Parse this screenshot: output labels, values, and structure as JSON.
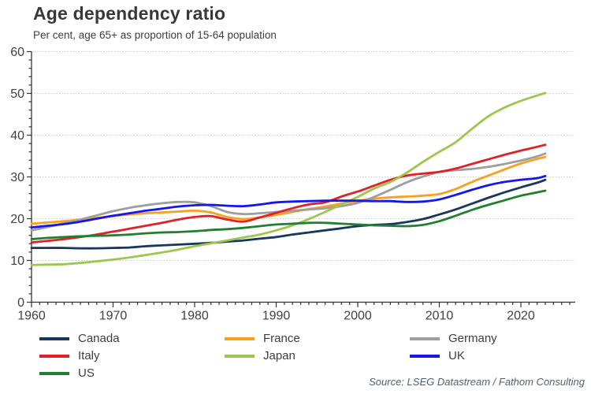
{
  "chart_data": {
    "type": "line",
    "title": "Age dependency ratio",
    "subtitle": "Per cent, age 65+ as proportion of 15-64 population",
    "source": "Source: LSEG Datastream / Fathom Consulting",
    "x": [
      1960,
      1962,
      1964,
      1966,
      1968,
      1970,
      1972,
      1974,
      1976,
      1978,
      1980,
      1982,
      1984,
      1986,
      1988,
      1990,
      1992,
      1994,
      1996,
      1998,
      2000,
      2002,
      2004,
      2006,
      2008,
      2010,
      2012,
      2014,
      2016,
      2018,
      2020,
      2022,
      2023
    ],
    "xlim": [
      1960,
      2026.6
    ],
    "ylim": [
      0,
      60
    ],
    "x_ticks": [
      1960,
      1970,
      1980,
      1990,
      2000,
      2010,
      2020
    ],
    "y_ticks": [
      0,
      10,
      20,
      30,
      40,
      50,
      60
    ],
    "y_minor_step": 2,
    "x_minor_step": 1,
    "grid": "horizontal-dotted",
    "grid_color": "#c9c9c9",
    "axis_color": "#333333",
    "tick_label_color": "#404040",
    "legend_position": "bottom",
    "series": [
      {
        "name": "Canada",
        "color": "#17375e",
        "values": [
          13.0,
          13.0,
          13.0,
          12.9,
          12.9,
          13.0,
          13.1,
          13.4,
          13.6,
          13.8,
          14.0,
          14.2,
          14.5,
          14.8,
          15.2,
          15.6,
          16.2,
          16.7,
          17.2,
          17.7,
          18.2,
          18.5,
          18.7,
          19.2,
          19.9,
          21.0,
          22.2,
          23.6,
          25.0,
          26.3,
          27.5,
          28.6,
          29.3
        ]
      },
      {
        "name": "France",
        "color": "#f9a11c",
        "values": [
          18.8,
          19.1,
          19.4,
          19.8,
          20.2,
          20.6,
          21.0,
          21.3,
          21.5,
          21.7,
          21.9,
          21.5,
          20.4,
          19.9,
          20.3,
          20.9,
          21.6,
          22.3,
          22.9,
          23.6,
          24.3,
          24.8,
          25.1,
          25.3,
          25.5,
          25.9,
          27.1,
          28.8,
          30.3,
          31.8,
          33.2,
          34.3,
          34.8
        ]
      },
      {
        "name": "Germany",
        "color": "#9e9e9e",
        "values": [
          17.2,
          18.0,
          18.9,
          19.8,
          20.8,
          21.8,
          22.6,
          23.2,
          23.7,
          24.0,
          23.9,
          23.0,
          21.6,
          21.1,
          21.3,
          21.6,
          21.9,
          22.2,
          22.5,
          23.0,
          23.8,
          25.2,
          26.9,
          28.7,
          30.1,
          31.2,
          31.6,
          31.9,
          32.4,
          33.1,
          33.9,
          34.9,
          35.6
        ]
      },
      {
        "name": "Italy",
        "color": "#e02128",
        "values": [
          14.3,
          14.7,
          15.1,
          15.6,
          16.2,
          16.9,
          17.6,
          18.3,
          19.0,
          19.8,
          20.4,
          20.6,
          19.8,
          19.3,
          20.3,
          21.4,
          22.5,
          23.4,
          23.9,
          25.3,
          26.5,
          27.9,
          29.3,
          30.3,
          30.8,
          31.2,
          32.0,
          33.1,
          34.2,
          35.3,
          36.3,
          37.2,
          37.7
        ]
      },
      {
        "name": "Japan",
        "color": "#9cc74c",
        "values": [
          8.9,
          9.0,
          9.1,
          9.4,
          9.8,
          10.2,
          10.7,
          11.3,
          11.9,
          12.6,
          13.4,
          14.1,
          14.8,
          15.5,
          16.2,
          17.2,
          18.4,
          19.9,
          21.6,
          23.4,
          25.2,
          27.2,
          28.8,
          31.0,
          33.6,
          36.0,
          38.3,
          41.5,
          44.5,
          46.6,
          48.2,
          49.5,
          50.1
        ]
      },
      {
        "name": "UK",
        "color": "#1515ee",
        "values": [
          17.9,
          18.3,
          18.7,
          19.3,
          20.0,
          20.7,
          21.3,
          21.9,
          22.4,
          22.9,
          23.2,
          23.3,
          23.1,
          23.0,
          23.4,
          23.9,
          24.1,
          24.2,
          24.3,
          24.3,
          24.3,
          24.2,
          24.2,
          24.0,
          24.1,
          24.6,
          25.7,
          26.9,
          28.0,
          28.8,
          29.3,
          29.7,
          30.2
        ]
      },
      {
        "name": "US",
        "color": "#208030",
        "values": [
          15.1,
          15.4,
          15.6,
          15.8,
          15.9,
          16.0,
          16.2,
          16.5,
          16.7,
          16.8,
          17.0,
          17.3,
          17.5,
          17.8,
          18.2,
          18.6,
          18.8,
          19.0,
          19.0,
          18.8,
          18.6,
          18.4,
          18.3,
          18.2,
          18.5,
          19.4,
          20.7,
          22.1,
          23.3,
          24.4,
          25.5,
          26.3,
          26.7
        ]
      }
    ],
    "legend_columns": [
      [
        "Canada",
        "Italy",
        "US"
      ],
      [
        "France",
        "Japan"
      ],
      [
        "Germany",
        "UK"
      ]
    ]
  }
}
